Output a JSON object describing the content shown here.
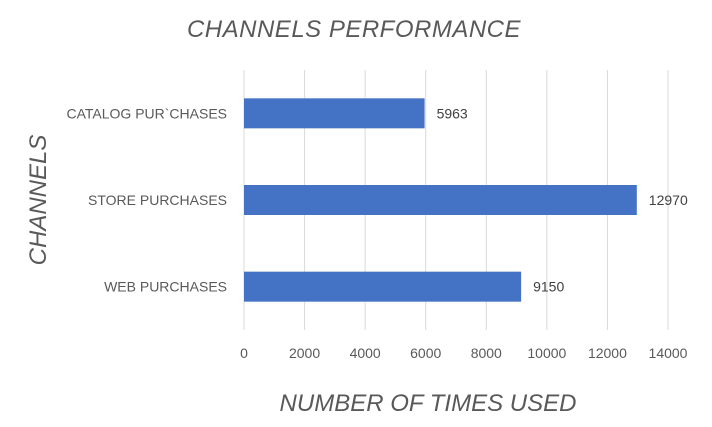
{
  "chart_data": {
    "type": "bar",
    "orientation": "horizontal",
    "title": "CHANNELS  PERFORMANCE",
    "xlabel": "NUMBER OF TIMES USED",
    "ylabel": "CHANNELS",
    "categories": [
      "CATALOG PUR`CHASES",
      "STORE PURCHASES",
      "WEB PURCHASES"
    ],
    "values": [
      5963,
      12970,
      9150
    ],
    "data_labels": [
      "5963",
      "12970",
      "9150"
    ],
    "xlim": [
      0,
      14000
    ],
    "xticks": [
      0,
      2000,
      4000,
      6000,
      8000,
      10000,
      12000,
      14000
    ],
    "xtick_labels": [
      "0",
      "2000",
      "4000",
      "6000",
      "8000",
      "10000",
      "12000",
      "14000"
    ],
    "grid": true,
    "bar_color": "#4472c4"
  }
}
